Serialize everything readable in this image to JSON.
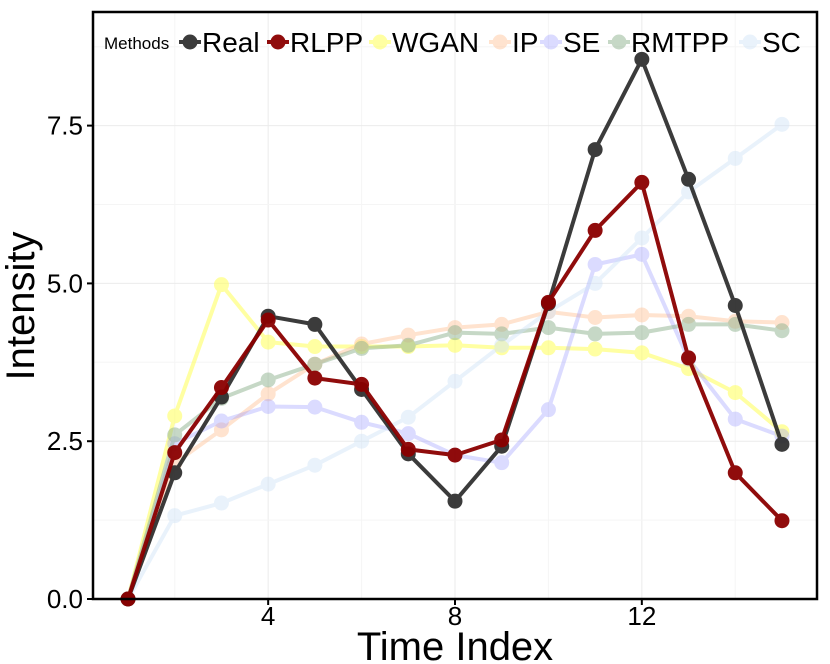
{
  "chart_data": {
    "type": "line",
    "title": "",
    "xlabel": "Time Index",
    "ylabel": "Intensity",
    "xlim": [
      0.25,
      15.75
    ],
    "ylim": [
      0,
      9.3
    ],
    "x_ticks": [
      4,
      8,
      12
    ],
    "y_ticks": [
      0.0,
      2.5,
      5.0,
      7.5
    ],
    "x_tick_labels": [
      "4",
      "8",
      "12"
    ],
    "y_tick_labels": [
      "0.0",
      "2.5",
      "5.0",
      "7.5"
    ],
    "grid": true,
    "legend_title": "Methods",
    "legend_position": "top",
    "x": [
      1,
      2,
      3,
      4,
      5,
      6,
      7,
      8,
      9,
      10,
      11,
      12,
      13,
      14,
      15
    ],
    "series": [
      {
        "name": "WGAN",
        "color": "#ffff66",
        "opacity": 0.6,
        "values": [
          0,
          2.9,
          4.98,
          4.07,
          4.0,
          4.0,
          4.0,
          4.02,
          3.98,
          3.98,
          3.96,
          3.9,
          3.65,
          3.27,
          2.65
        ]
      },
      {
        "name": "IP",
        "color": "#ffc8a0",
        "opacity": 0.5,
        "values": [
          0,
          2.15,
          2.68,
          3.25,
          3.72,
          4.04,
          4.18,
          4.3,
          4.35,
          4.55,
          4.46,
          4.5,
          4.48,
          4.4,
          4.38
        ]
      },
      {
        "name": "SE",
        "color": "#9999ff",
        "opacity": 0.35,
        "values": [
          0,
          2.46,
          2.82,
          3.05,
          3.04,
          2.8,
          2.62,
          2.28,
          2.16,
          3.0,
          5.3,
          5.46,
          3.8,
          2.85,
          2.58
        ]
      },
      {
        "name": "RMTPP",
        "color": "#8fb28f",
        "opacity": 0.5,
        "values": [
          0,
          2.6,
          3.18,
          3.47,
          3.72,
          3.97,
          4.02,
          4.22,
          4.2,
          4.3,
          4.2,
          4.22,
          4.35,
          4.35,
          4.25
        ]
      },
      {
        "name": "SC",
        "color": "#cfe3f7",
        "opacity": 0.45,
        "values": [
          0,
          1.32,
          1.52,
          1.82,
          2.12,
          2.5,
          2.88,
          3.45,
          4.02,
          4.55,
          5.0,
          5.72,
          6.45,
          6.98,
          7.52
        ]
      },
      {
        "name": "Real",
        "color": "#2b2b2b",
        "opacity": 0.92,
        "values": [
          0,
          2.0,
          3.2,
          4.48,
          4.35,
          3.32,
          2.3,
          1.55,
          2.42,
          4.68,
          7.12,
          8.55,
          6.65,
          4.65,
          2.45
        ]
      },
      {
        "name": "RLPP",
        "color": "#8b0000",
        "opacity": 0.95,
        "values": [
          0,
          2.32,
          3.35,
          4.42,
          3.5,
          3.4,
          2.37,
          2.28,
          2.52,
          4.7,
          5.84,
          6.6,
          3.82,
          2.0,
          1.24
        ]
      }
    ],
    "legend_order": [
      "Real",
      "RLPP",
      "WGAN",
      "IP",
      "SE",
      "RMTPP",
      "SC"
    ]
  }
}
